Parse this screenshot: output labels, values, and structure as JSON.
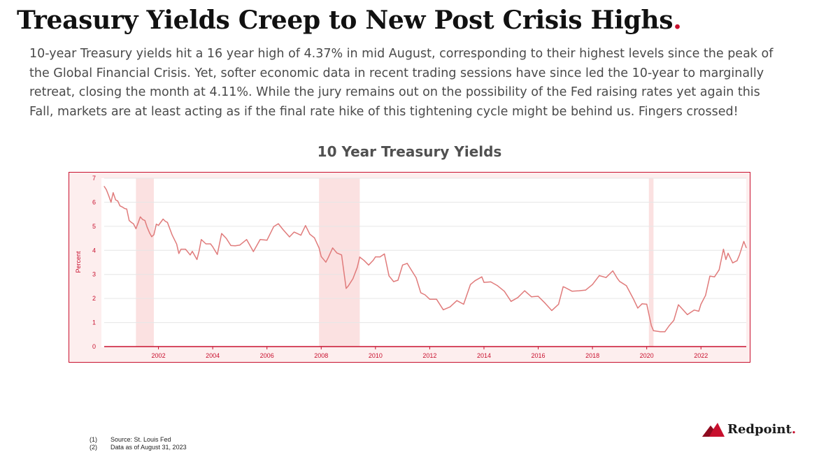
{
  "headline": {
    "text": "Treasury Yields Creep to New Post Crisis Highs",
    "dot": "."
  },
  "body": "10-year Treasury yields hit a 16 year high of 4.37% in mid August, corresponding to their highest levels since the peak of the Global Financial Crisis. Yet, softer economic data in recent trading sessions have since led the 10-year to marginally retreat, closing the month at 4.11%. While the jury remains out on the possibility of the Fed raising rates yet again this Fall, markets are at least acting as if the final rate hike of this tightening cycle might be behind us. Fingers crossed!",
  "chart_data": {
    "type": "line",
    "title": "10 Year Treasury Yields",
    "xlabel": "",
    "ylabel": "Percent",
    "xlim": [
      2000.0,
      2023.67
    ],
    "ylim": [
      0,
      7
    ],
    "y_ticks": [
      0,
      1,
      2,
      3,
      4,
      5,
      6,
      7
    ],
    "x_ticks": [
      "2002",
      "2004",
      "2006",
      "2008",
      "2010",
      "2012",
      "2014",
      "2016",
      "2018",
      "2020",
      "2022"
    ],
    "grid": true,
    "recessions": [
      [
        2001.17,
        2001.83
      ],
      [
        2007.92,
        2009.42
      ],
      [
        2020.08,
        2020.25
      ]
    ],
    "series": [
      {
        "color": "#e07b7b",
        "x": [
          2000.0,
          2000.08,
          2000.17,
          2000.25,
          2000.33,
          2000.42,
          2000.5,
          2000.58,
          2000.67,
          2000.75,
          2000.83,
          2000.92,
          2001.0,
          2001.08,
          2001.17,
          2001.25,
          2001.33,
          2001.42,
          2001.5,
          2001.58,
          2001.67,
          2001.75,
          2001.83,
          2001.92,
          2002.0,
          2002.17,
          2002.25,
          2002.33,
          2002.5,
          2002.67,
          2002.75,
          2002.83,
          2003.0,
          2003.17,
          2003.25,
          2003.42,
          2003.5,
          2003.58,
          2003.75,
          2003.92,
          2004.0,
          2004.17,
          2004.33,
          2004.5,
          2004.67,
          2004.83,
          2005.0,
          2005.25,
          2005.5,
          2005.75,
          2006.0,
          2006.25,
          2006.42,
          2006.58,
          2006.83,
          2007.0,
          2007.25,
          2007.42,
          2007.58,
          2007.75,
          2007.92,
          2008.0,
          2008.17,
          2008.25,
          2008.42,
          2008.58,
          2008.75,
          2008.92,
          2009.0,
          2009.17,
          2009.33,
          2009.42,
          2009.58,
          2009.75,
          2009.92,
          2010.0,
          2010.17,
          2010.33,
          2010.5,
          2010.67,
          2010.83,
          2011.0,
          2011.17,
          2011.33,
          2011.5,
          2011.67,
          2011.83,
          2012.0,
          2012.25,
          2012.5,
          2012.75,
          2013.0,
          2013.25,
          2013.5,
          2013.67,
          2013.92,
          2014.0,
          2014.25,
          2014.5,
          2014.75,
          2015.0,
          2015.25,
          2015.5,
          2015.75,
          2016.0,
          2016.25,
          2016.5,
          2016.75,
          2016.92,
          2017.0,
          2017.25,
          2017.5,
          2017.75,
          2018.0,
          2018.25,
          2018.5,
          2018.75,
          2018.92,
          2019.0,
          2019.25,
          2019.5,
          2019.67,
          2019.83,
          2020.0,
          2020.17,
          2020.25,
          2020.5,
          2020.67,
          2020.83,
          2021.0,
          2021.17,
          2021.25,
          2021.5,
          2021.75,
          2021.92,
          2022.0,
          2022.17,
          2022.33,
          2022.5,
          2022.67,
          2022.83,
          2022.92,
          2023.0,
          2023.17,
          2023.33,
          2023.42,
          2023.58,
          2023.67
        ],
        "values": [
          6.66,
          6.52,
          6.26,
          6.0,
          6.4,
          6.1,
          6.05,
          5.85,
          5.8,
          5.74,
          5.72,
          5.24,
          5.16,
          5.1,
          4.9,
          5.14,
          5.39,
          5.28,
          5.24,
          4.97,
          4.73,
          4.57,
          4.65,
          5.09,
          5.04,
          5.3,
          5.21,
          5.16,
          4.65,
          4.26,
          3.87,
          4.05,
          4.05,
          3.81,
          3.96,
          3.62,
          3.98,
          4.45,
          4.27,
          4.27,
          4.15,
          3.83,
          4.7,
          4.5,
          4.2,
          4.19,
          4.22,
          4.45,
          3.95,
          4.45,
          4.42,
          4.99,
          5.11,
          4.88,
          4.56,
          4.76,
          4.63,
          5.03,
          4.67,
          4.52,
          4.1,
          3.74,
          3.51,
          3.68,
          4.1,
          3.89,
          3.81,
          2.42,
          2.52,
          2.82,
          3.29,
          3.72,
          3.58,
          3.39,
          3.59,
          3.73,
          3.73,
          3.85,
          2.94,
          2.7,
          2.76,
          3.39,
          3.46,
          3.17,
          2.86,
          2.24,
          2.15,
          1.97,
          1.97,
          1.53,
          1.65,
          1.91,
          1.76,
          2.58,
          2.74,
          2.9,
          2.67,
          2.69,
          2.53,
          2.3,
          1.88,
          2.04,
          2.32,
          2.07,
          2.09,
          1.81,
          1.5,
          1.76,
          2.49,
          2.45,
          2.3,
          2.32,
          2.35,
          2.58,
          2.95,
          2.87,
          3.15,
          2.83,
          2.71,
          2.53,
          2.0,
          1.6,
          1.78,
          1.76,
          0.87,
          0.66,
          0.62,
          0.62,
          0.87,
          1.09,
          1.74,
          1.64,
          1.33,
          1.52,
          1.47,
          1.76,
          2.13,
          2.93,
          2.9,
          3.19,
          4.05,
          3.62,
          3.88,
          3.48,
          3.57,
          3.81,
          4.37,
          4.11
        ]
      }
    ]
  },
  "footnotes": [
    {
      "num": "(1)",
      "text": "Source: St. Louis Fed"
    },
    {
      "num": "(2)",
      "text": "Data as of August 31, 2023"
    }
  ],
  "brand": {
    "name": "Redpoint",
    "dot": ".",
    "logo_color": "#c8102e"
  }
}
